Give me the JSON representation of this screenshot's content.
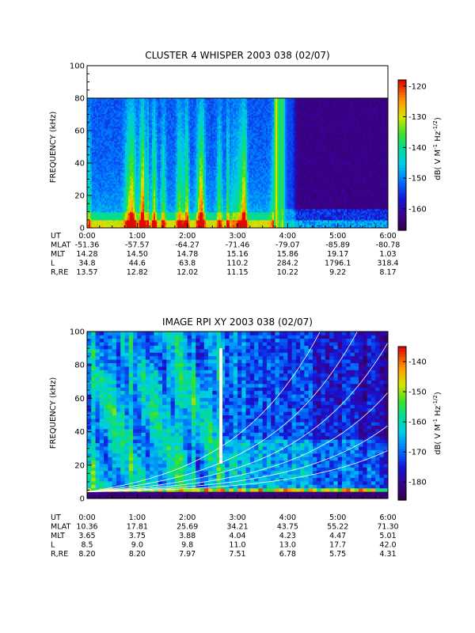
{
  "chart_data": [
    {
      "type": "heatmap",
      "title": "CLUSTER 4 WHISPER 2003 038 (02/07)",
      "ylabel": "FREQUENCY (kHz)",
      "ylim": [
        0,
        100
      ],
      "yticks": [
        0,
        20,
        40,
        60,
        80,
        100
      ],
      "xlim": [
        "0:00",
        "6:00"
      ],
      "data_top_khz": 80,
      "colorbar": {
        "label": "dB( V M-1 Hz-1/2)",
        "label_main": "dB( V M",
        "label_sup1": "-1",
        "label_mid": " Hz",
        "label_sup2": "-1/2",
        "label_end": ")",
        "range": [
          -167,
          -118
        ],
        "ticks": [
          "-120",
          "-130",
          "-140",
          "-150",
          "-160"
        ],
        "tick_values": [
          -120,
          -130,
          -140,
          -150,
          -160
        ]
      },
      "ephemeris": {
        "row_labels": [
          "UT",
          "MLAT",
          "MLT",
          "L",
          "R,RE"
        ],
        "rows": [
          [
            "0:00",
            "1:00",
            "2:00",
            "3:00",
            "4:00",
            "5:00",
            "6:00"
          ],
          [
            "-51.36",
            "-57.57",
            "-64.27",
            "-71.46",
            "-79.07",
            "-85.89",
            "-80.78"
          ],
          [
            "14.28",
            "14.50",
            "14.78",
            "15.16",
            "15.86",
            "19.17",
            "1.03"
          ],
          [
            "34.8",
            "44.6",
            "63.8",
            "110.2",
            "284.2",
            "1796.1",
            "318.4"
          ],
          [
            "13.57",
            "12.82",
            "12.02",
            "11.15",
            "10.22",
            "9.22",
            "8.17"
          ]
        ]
      }
    },
    {
      "type": "heatmap",
      "title": "IMAGE RPI XY 2003 038 (02/07)",
      "ylabel": "FREQUENCY (kHz)",
      "ylim": [
        0,
        100
      ],
      "yticks": [
        0,
        20,
        40,
        60,
        80,
        100
      ],
      "xlim": [
        "0:00",
        "6:00"
      ],
      "colorbar": {
        "label": "dB( V M-1 Hz-1/2)",
        "label_main": "dB( V M",
        "label_sup1": "-1",
        "label_mid": " Hz",
        "label_sup2": "-1/2",
        "label_end": ")",
        "range": [
          -186,
          -135
        ],
        "ticks": [
          "-140",
          "-150",
          "-160",
          "-170",
          "-180"
        ],
        "tick_values": [
          -140,
          -150,
          -160,
          -170,
          -180
        ]
      },
      "ephemeris": {
        "row_labels": [
          "UT",
          "MLAT",
          "MLT",
          "L",
          "R,RE"
        ],
        "rows": [
          [
            "0:00",
            "1:00",
            "2:00",
            "3:00",
            "4:00",
            "5:00",
            "6:00"
          ],
          [
            "10.36",
            "17.81",
            "25.69",
            "34.21",
            "43.75",
            "55.22",
            "71.30"
          ],
          [
            "3.65",
            "3.75",
            "3.88",
            "4.04",
            "4.23",
            "4.47",
            "5.01"
          ],
          [
            "8.5",
            "9.0",
            "9.8",
            "11.0",
            "13.0",
            "17.7",
            "42.0"
          ],
          [
            "8.20",
            "8.20",
            "7.97",
            "7.51",
            "6.78",
            "5.75",
            "4.31"
          ]
        ]
      }
    }
  ]
}
